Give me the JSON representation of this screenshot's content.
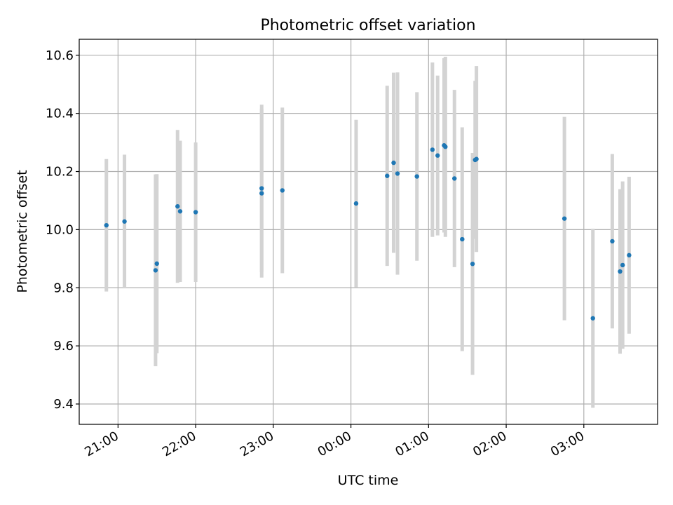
{
  "chart_data": {
    "type": "scatter",
    "title": "Photometric offset variation",
    "xlabel": "UTC time",
    "ylabel": "Photometric offset",
    "x_tick_labels": [
      "21:00",
      "22:00",
      "23:00",
      "00:00",
      "01:00",
      "02:00",
      "03:00"
    ],
    "y_tick_labels": [
      "9.4",
      "9.6",
      "9.8",
      "10.0",
      "10.2",
      "10.4",
      "10.6"
    ],
    "y_ticks": [
      9.4,
      9.6,
      9.8,
      10.0,
      10.2,
      10.4,
      10.6
    ],
    "ylim": [
      9.33,
      10.655
    ],
    "xlim": [
      "20:30",
      "03:57"
    ],
    "grid": true,
    "marker_color": "#1f77b4",
    "errorbar_color": "#d3d3d3",
    "series": [
      {
        "points": [
          {
            "x": "20:51",
            "y": 10.015,
            "err": 0.228
          },
          {
            "x": "21:05",
            "y": 10.028,
            "err": 0.23
          },
          {
            "x": "21:29",
            "y": 9.86,
            "err": 0.33
          },
          {
            "x": "21:30",
            "y": 9.883,
            "err": 0.308
          },
          {
            "x": "21:46",
            "y": 10.08,
            "err": 0.263
          },
          {
            "x": "21:48",
            "y": 10.063,
            "err": 0.243
          },
          {
            "x": "22:00",
            "y": 10.06,
            "err": 0.24
          },
          {
            "x": "22:51",
            "y": 10.142,
            "err": 0.288
          },
          {
            "x": "22:51",
            "y": 10.125,
            "err": 0.29
          },
          {
            "x": "23:07",
            "y": 10.135,
            "err": 0.285
          },
          {
            "x": "00:04",
            "y": 10.09,
            "err": 0.288
          },
          {
            "x": "00:28",
            "y": 10.185,
            "err": 0.31
          },
          {
            "x": "00:33",
            "y": 10.23,
            "err": 0.31
          },
          {
            "x": "00:36",
            "y": 10.193,
            "err": 0.348
          },
          {
            "x": "00:51",
            "y": 10.183,
            "err": 0.29
          },
          {
            "x": "01:03",
            "y": 10.275,
            "err": 0.3
          },
          {
            "x": "01:07",
            "y": 10.255,
            "err": 0.275
          },
          {
            "x": "01:12",
            "y": 10.29,
            "err": 0.3
          },
          {
            "x": "01:13",
            "y": 10.285,
            "err": 0.31
          },
          {
            "x": "01:20",
            "y": 10.176,
            "err": 0.305
          },
          {
            "x": "01:26",
            "y": 9.967,
            "err": 0.385
          },
          {
            "x": "01:34",
            "y": 9.882,
            "err": 0.382
          },
          {
            "x": "01:36",
            "y": 10.24,
            "err": 0.272
          },
          {
            "x": "01:37",
            "y": 10.243,
            "err": 0.32
          },
          {
            "x": "02:45",
            "y": 10.038,
            "err": 0.35
          },
          {
            "x": "03:07",
            "y": 9.695,
            "err": 0.308
          },
          {
            "x": "03:22",
            "y": 9.96,
            "err": 0.3
          },
          {
            "x": "03:28",
            "y": 9.856,
            "err": 0.283
          },
          {
            "x": "03:30",
            "y": 9.878,
            "err": 0.288
          },
          {
            "x": "03:35",
            "y": 9.912,
            "err": 0.27
          }
        ]
      }
    ]
  }
}
